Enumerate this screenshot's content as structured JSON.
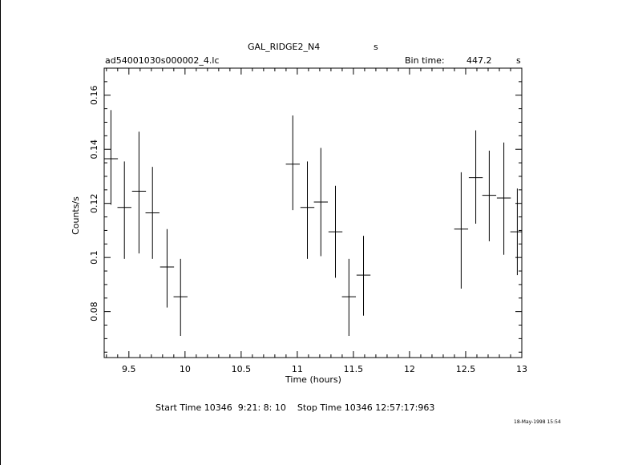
{
  "header": {
    "object": "GAL_RIDGE2_N4",
    "object_unit": "s",
    "file": "ad54001030s000002_4.lc",
    "bin_label": "Bin time:",
    "bin_value": "447.2",
    "bin_unit": "s"
  },
  "footer": {
    "times": "Start Time 10346  9:21: 8: 10    Stop Time 10346 12:57:17:963",
    "stamp": "18-May-1998 15:54"
  },
  "chart_data": {
    "type": "scatter",
    "xlabel": "Time (hours)",
    "ylabel": "Counts/s",
    "xlim": [
      9.28,
      13.0
    ],
    "ylim": [
      0.063,
      0.17
    ],
    "xticks": [
      9.5,
      10,
      10.5,
      11,
      11.5,
      12,
      12.5,
      13
    ],
    "xtick_labels": [
      "9.5",
      "10",
      "10.5",
      "11",
      "11.5",
      "12",
      "12.5",
      "13"
    ],
    "yticks": [
      0.08,
      0.1,
      0.12,
      0.14,
      0.16
    ],
    "ytick_labels": [
      "0.08",
      "0.1",
      "0.12",
      "0.14",
      "0.16"
    ],
    "grid": false,
    "x_half_width": 0.0621,
    "points": [
      {
        "x": 9.34,
        "y": 0.1365,
        "ylo": 0.1195,
        "yhi": 0.1545
      },
      {
        "x": 9.46,
        "y": 0.1185,
        "ylo": 0.0995,
        "yhi": 0.1355
      },
      {
        "x": 9.59,
        "y": 0.1245,
        "ylo": 0.1015,
        "yhi": 0.1465
      },
      {
        "x": 9.71,
        "y": 0.1165,
        "ylo": 0.0995,
        "yhi": 0.1335
      },
      {
        "x": 9.84,
        "y": 0.0965,
        "ylo": 0.0815,
        "yhi": 0.1105
      },
      {
        "x": 9.96,
        "y": 0.0855,
        "ylo": 0.071,
        "yhi": 0.0995
      },
      {
        "x": 10.96,
        "y": 0.1345,
        "ylo": 0.1175,
        "yhi": 0.1525
      },
      {
        "x": 11.09,
        "y": 0.1185,
        "ylo": 0.0995,
        "yhi": 0.1355
      },
      {
        "x": 11.21,
        "y": 0.1205,
        "ylo": 0.1005,
        "yhi": 0.1405
      },
      {
        "x": 11.34,
        "y": 0.1095,
        "ylo": 0.0925,
        "yhi": 0.1265
      },
      {
        "x": 11.46,
        "y": 0.0855,
        "ylo": 0.071,
        "yhi": 0.0995
      },
      {
        "x": 11.59,
        "y": 0.0935,
        "ylo": 0.0785,
        "yhi": 0.108
      },
      {
        "x": 12.46,
        "y": 0.1105,
        "ylo": 0.0885,
        "yhi": 0.1315
      },
      {
        "x": 12.59,
        "y": 0.1295,
        "ylo": 0.1125,
        "yhi": 0.147
      },
      {
        "x": 12.71,
        "y": 0.123,
        "ylo": 0.106,
        "yhi": 0.1395
      },
      {
        "x": 12.84,
        "y": 0.122,
        "ylo": 0.101,
        "yhi": 0.1425
      },
      {
        "x": 12.96,
        "y": 0.1095,
        "ylo": 0.0935,
        "yhi": 0.1255
      }
    ]
  }
}
